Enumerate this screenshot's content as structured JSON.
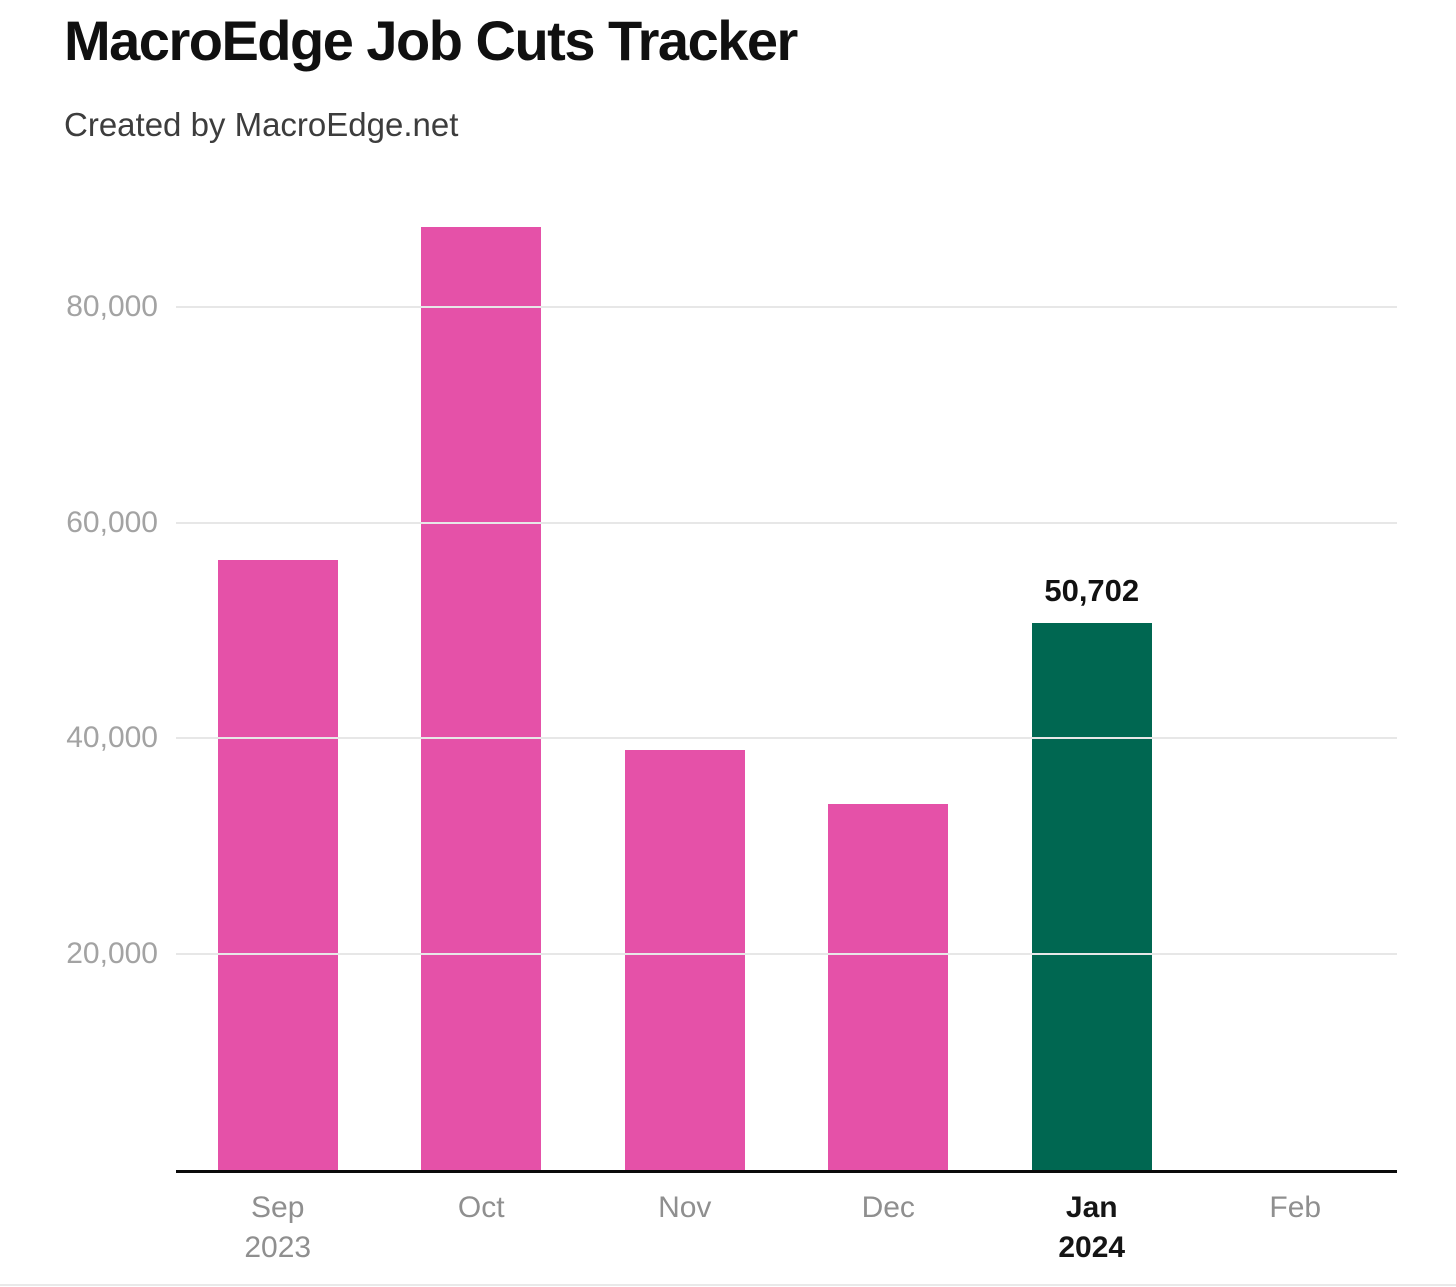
{
  "header": {
    "title": "MacroEdge Job Cuts Tracker",
    "subtitle": "Created by MacroEdge.net"
  },
  "chart_data": {
    "type": "bar",
    "title": "MacroEdge Job Cuts Tracker",
    "subtitle": "Created by MacroEdge.net",
    "xlabel": "",
    "ylabel": "",
    "categories": [
      "Sep",
      "Oct",
      "Nov",
      "Dec",
      "Jan",
      "Feb"
    ],
    "category_sublabels": [
      "2023",
      "",
      "",
      "",
      "2024",
      ""
    ],
    "values": [
      56500,
      87400,
      38900,
      33900,
      50702,
      0
    ],
    "value_labels": [
      "",
      "",
      "",
      "",
      "50,702",
      ""
    ],
    "highlighted_index": 4,
    "ylim": [
      0,
      90000
    ],
    "yticks": [
      20000,
      40000,
      60000,
      80000
    ],
    "ytick_labels": [
      "20,000",
      "40,000",
      "60,000",
      "80,000"
    ],
    "grid": "horizontal-only",
    "legend": "none",
    "colors": {
      "bar": "#e551a8",
      "highlight_bar": "#006751",
      "gridline": "#e7e7e7",
      "axis_line": "#0b0b0b",
      "ytick_text": "#a3a3a3",
      "xtick_text": "#8f8f8f",
      "xtick_highlight_text": "#151515",
      "value_label_text": "#111111",
      "title_text": "#101010",
      "subtitle_text": "#3d3d3d"
    }
  }
}
